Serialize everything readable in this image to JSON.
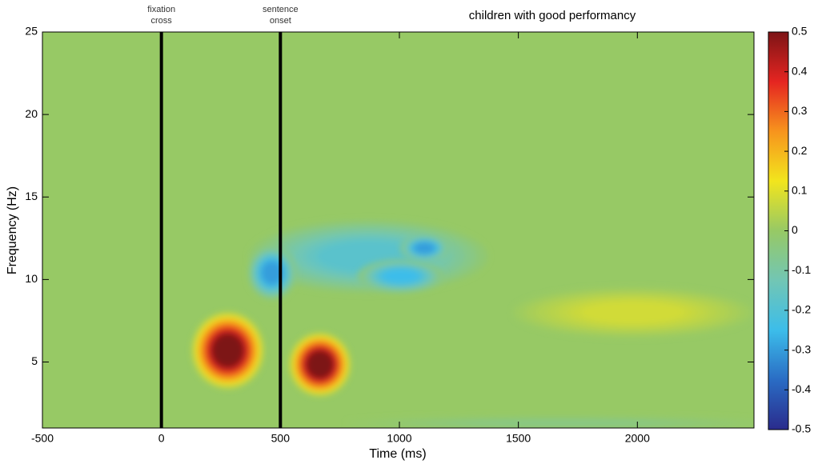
{
  "chart_data": {
    "type": "heatmap",
    "title": "children with good performancy",
    "xlabel": "Time (ms)",
    "ylabel": "Frequency (Hz)",
    "xlim": [
      -500,
      2490
    ],
    "ylim": [
      1,
      25
    ],
    "xticks": [
      -500,
      0,
      500,
      1000,
      1500,
      2000
    ],
    "yticks": [
      5,
      10,
      15,
      20,
      25
    ],
    "clim": [
      -0.5,
      0.5
    ],
    "cticks": [
      -0.5,
      -0.4,
      -0.3,
      -0.2,
      -0.1,
      0,
      0.1,
      0.2,
      0.3,
      0.4,
      0.5
    ],
    "colormap": [
      "#2a2b8c",
      "#2a6cc4",
      "#3cbdea",
      "#72c6b4",
      "#97c965",
      "#f2e51d",
      "#f7941d",
      "#e52521",
      "#7d1416"
    ],
    "blobs": [
      {
        "x": 279,
        "y": 5.7,
        "rx": 150,
        "ry": 2.3,
        "value": 0.5
      },
      {
        "x": 666,
        "y": 4.85,
        "rx": 128,
        "ry": 1.9,
        "value": 0.5
      },
      {
        "x": 870,
        "y": 11.4,
        "rx": 500,
        "ry": 2.2,
        "value": -0.18
      },
      {
        "x": 465,
        "y": 10.4,
        "rx": 100,
        "ry": 1.6,
        "value": -0.3
      },
      {
        "x": 1005,
        "y": 10.2,
        "rx": 180,
        "ry": 1.0,
        "value": -0.25
      },
      {
        "x": 1105,
        "y": 11.9,
        "rx": 100,
        "ry": 0.8,
        "value": -0.3
      },
      {
        "x": 1980,
        "y": 8.0,
        "rx": 500,
        "ry": 1.5,
        "value": 0.08
      },
      {
        "x": 1680,
        "y": 1.3,
        "rx": 900,
        "ry": 0.4,
        "value": -0.05
      }
    ],
    "annotations": [
      {
        "x": 0,
        "lines": [
          "fixation",
          "cross"
        ]
      },
      {
        "x": 500,
        "lines": [
          "sentence",
          "onset"
        ]
      }
    ]
  }
}
